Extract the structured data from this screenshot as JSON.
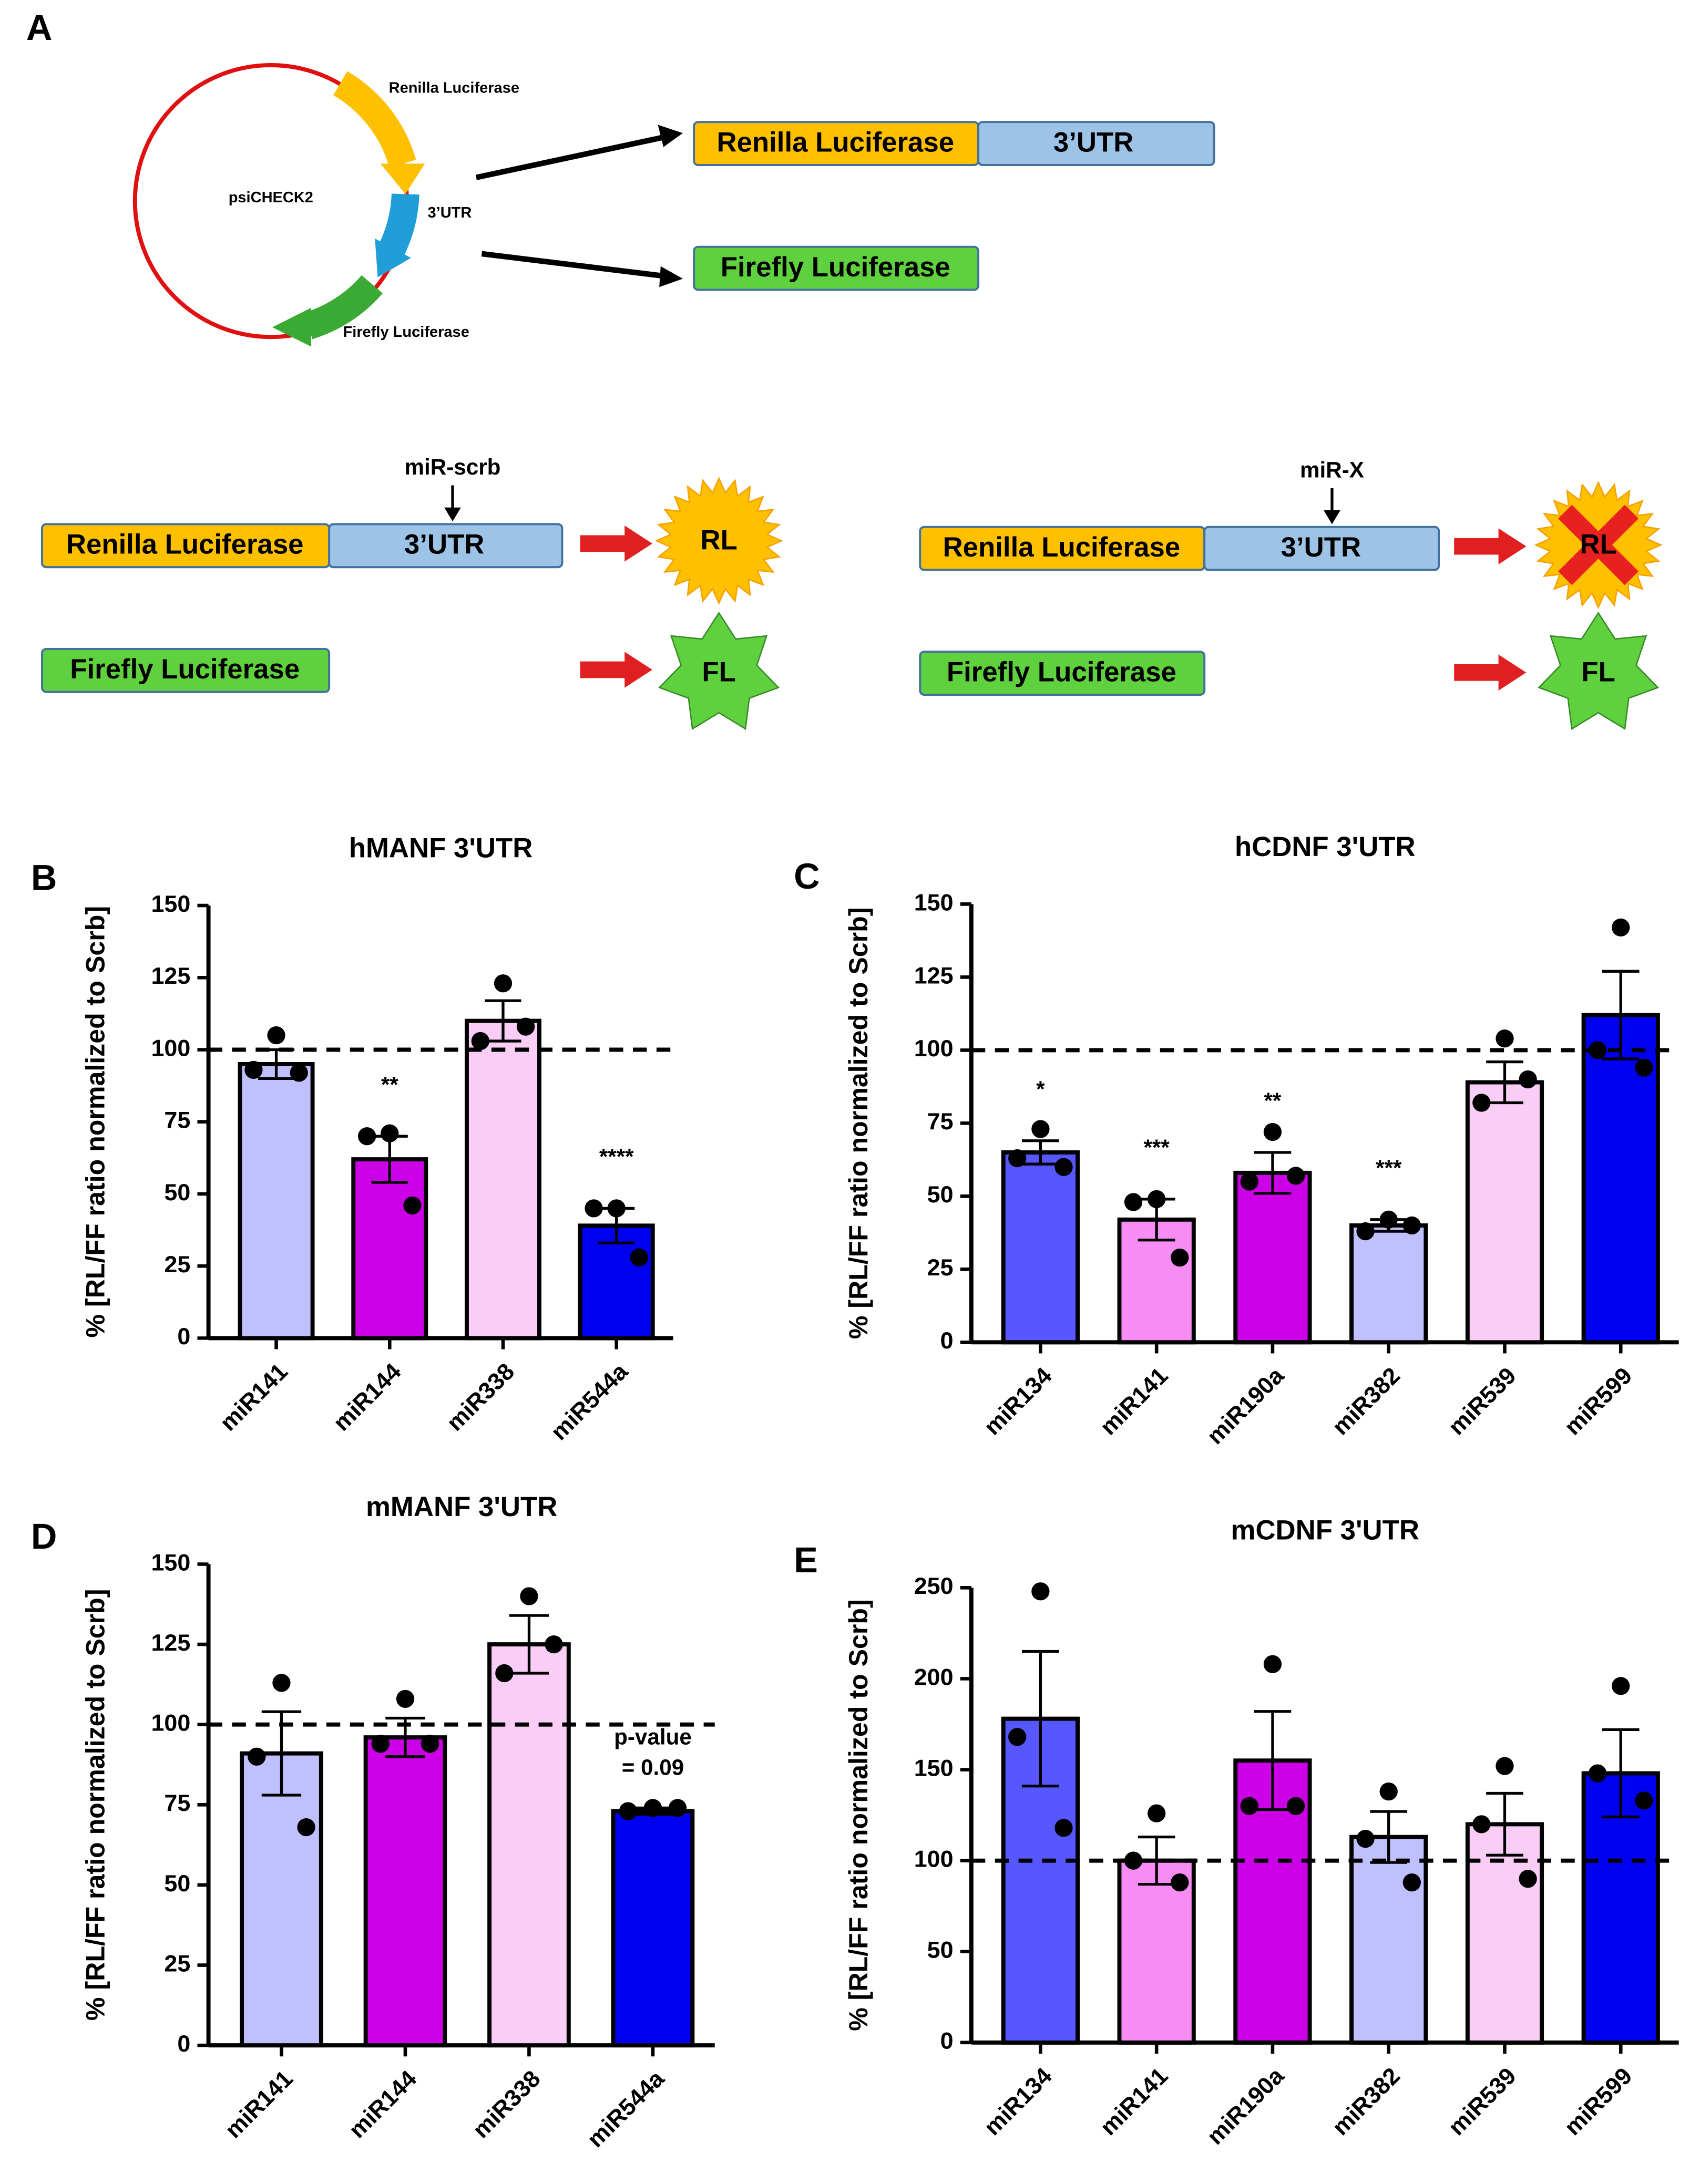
{
  "panel_a": {
    "label": "A",
    "plasmid": {
      "name": "psiCHECK2",
      "renilla": "Renilla Luciferase",
      "utr": "3’UTR",
      "firefly": "Firefly Luciferase"
    },
    "construct": {
      "renilla": "Renilla Luciferase",
      "utr": "3’UTR",
      "firefly": "Firefly Luciferase"
    },
    "control": {
      "mirna": "miR-scrb",
      "renilla": "Renilla Luciferase",
      "utr": "3’UTR",
      "firefly": "Firefly Luciferase",
      "rl": "RL",
      "fl": "FL"
    },
    "target": {
      "mirna": "miR-X",
      "renilla": "Renilla Luciferase",
      "utr": "3’UTR",
      "firefly": "Firefly Luciferase",
      "rl": "RL",
      "fl": "FL"
    }
  },
  "chart_data": [
    {
      "type": "bar",
      "panel": "B",
      "title": "hMANF 3'UTR",
      "ylabel": "% [RL/FF ratio normalized to Scrb]",
      "categories": [
        "miR141",
        "miR144",
        "miR338",
        "miR544a"
      ],
      "values": [
        95,
        62,
        110,
        39
      ],
      "errors": [
        5,
        8,
        7,
        6
      ],
      "points": [
        [
          105,
          93,
          92
        ],
        [
          71,
          70,
          46
        ],
        [
          123,
          103,
          108
        ],
        [
          45,
          45,
          28
        ]
      ],
      "colors": [
        "#c0c0ff",
        "#cc00e6",
        "#f9cdf5",
        "#0000f0"
      ],
      "significance": [
        null,
        "**",
        null,
        "****"
      ],
      "reference_line": 100,
      "ylim": [
        0,
        150
      ],
      "yticks": [
        0,
        25,
        50,
        75,
        100,
        125,
        150
      ]
    },
    {
      "type": "bar",
      "panel": "C",
      "title": "hCDNF 3'UTR",
      "ylabel": "% [RL/FF ratio normalized to Scrb]",
      "categories": [
        "miR134",
        "miR141",
        "miR190a",
        "miR382",
        "miR539",
        "miR599"
      ],
      "values": [
        65,
        42,
        58,
        40,
        89,
        112
      ],
      "errors": [
        4,
        7,
        7,
        2,
        7,
        15
      ],
      "points": [
        [
          73,
          63,
          60
        ],
        [
          49,
          48,
          29
        ],
        [
          72,
          55,
          57
        ],
        [
          42,
          38,
          40
        ],
        [
          104,
          82,
          90
        ],
        [
          142,
          100,
          94
        ]
      ],
      "colors": [
        "#5757ff",
        "#f78cf4",
        "#cc00e6",
        "#c0c0ff",
        "#f9cdf5",
        "#0000f0"
      ],
      "significance": [
        "*",
        "***",
        "**",
        "***",
        null,
        null
      ],
      "reference_line": 100,
      "ylim": [
        0,
        150
      ],
      "yticks": [
        0,
        25,
        50,
        75,
        100,
        125,
        150
      ]
    },
    {
      "type": "bar",
      "panel": "D",
      "title": "mMANF 3'UTR",
      "ylabel": "% [RL/FF ratio normalized to Scrb]",
      "categories": [
        "miR141",
        "miR144",
        "miR338",
        "miR544a"
      ],
      "values": [
        91,
        96,
        125,
        73
      ],
      "errors": [
        13,
        6,
        9,
        1
      ],
      "points": [
        [
          113,
          90,
          68
        ],
        [
          108,
          94,
          94
        ],
        [
          140,
          116,
          125
        ],
        [
          74,
          73,
          74
        ]
      ],
      "colors": [
        "#c0c0ff",
        "#cc00e6",
        "#f9cdf5",
        "#0000f0"
      ],
      "significance": [
        null,
        null,
        null,
        null
      ],
      "annotations": [
        {
          "category": "miR544a",
          "lines": [
            "p-value",
            "= 0.09"
          ]
        }
      ],
      "reference_line": 100,
      "ylim": [
        0,
        150
      ],
      "yticks": [
        0,
        25,
        50,
        75,
        100,
        125,
        150
      ]
    },
    {
      "type": "bar",
      "panel": "E",
      "title": "mCDNF 3'UTR",
      "ylabel": "% [RL/FF ratio normalized to Scrb]",
      "categories": [
        "miR134",
        "miR141",
        "miR190a",
        "miR382",
        "miR539",
        "miR599"
      ],
      "values": [
        178,
        100,
        155,
        113,
        120,
        148
      ],
      "errors": [
        37,
        13,
        27,
        14,
        17,
        24
      ],
      "points": [
        [
          248,
          168,
          118
        ],
        [
          126,
          100,
          88
        ],
        [
          208,
          130,
          130
        ],
        [
          138,
          112,
          88
        ],
        [
          152,
          120,
          90
        ],
        [
          196,
          148,
          133
        ]
      ],
      "colors": [
        "#5757ff",
        "#f78cf4",
        "#cc00e6",
        "#c0c0ff",
        "#f9cdf5",
        "#0000f0"
      ],
      "significance": [
        null,
        null,
        null,
        null,
        null,
        null
      ],
      "reference_line": 100,
      "ylim": [
        0,
        250
      ],
      "yticks": [
        0,
        50,
        100,
        150,
        200,
        250
      ]
    }
  ]
}
